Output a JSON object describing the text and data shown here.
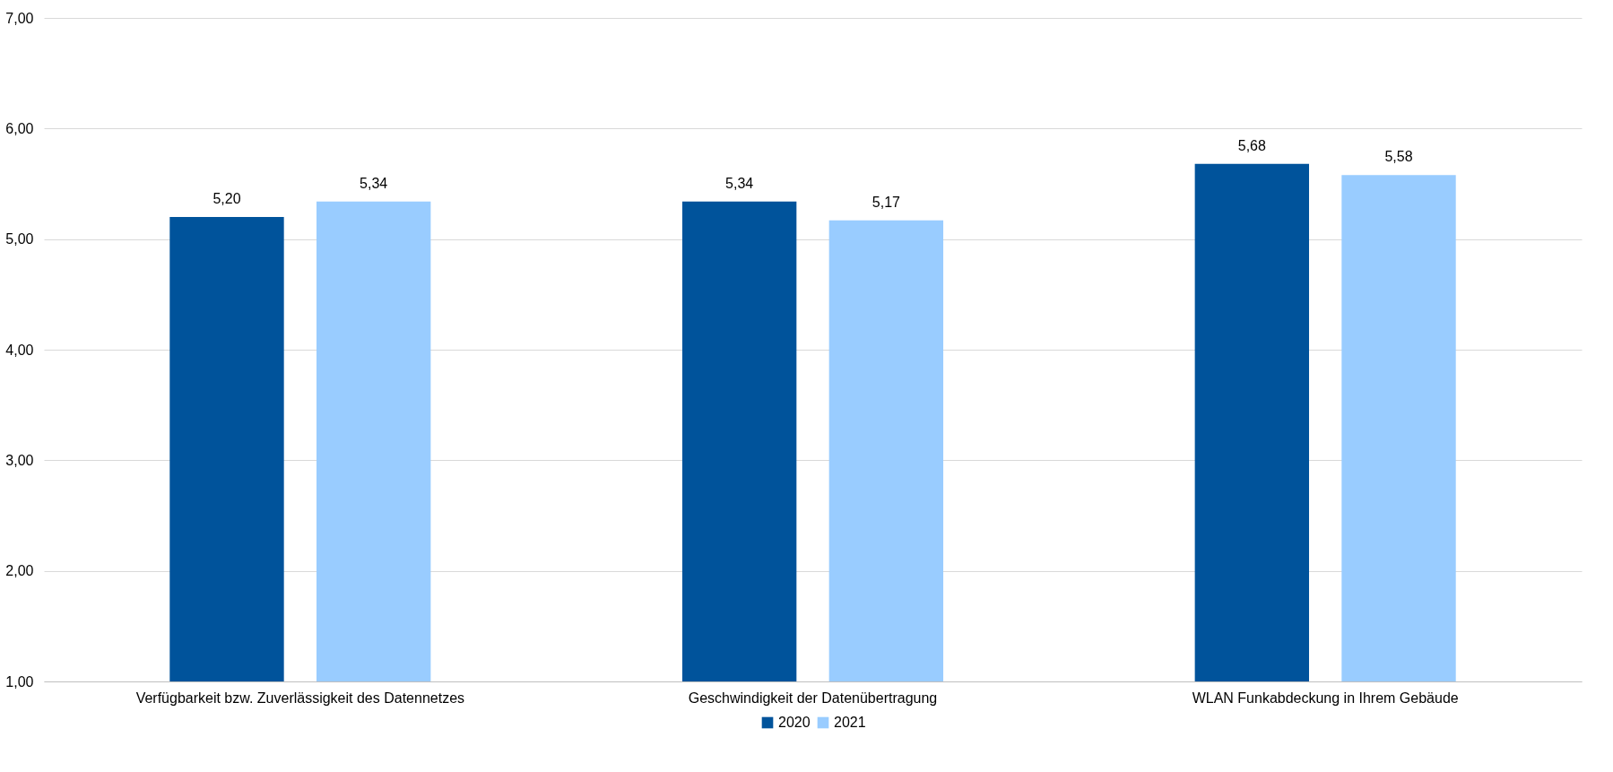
{
  "chart_data": {
    "type": "bar",
    "categories": [
      "Verfügbarkeit bzw. Zuverlässigkeit des Datennetzes",
      "Geschwindigkeit der Datenübertragung",
      "WLAN Funkabdeckung in Ihrem Gebäude"
    ],
    "series": [
      {
        "name": "2020",
        "color": "#00539b",
        "values": [
          5.2,
          5.34,
          5.68
        ],
        "value_labels": [
          "5,20",
          "5,34",
          "5,68"
        ]
      },
      {
        "name": "2021",
        "color": "#99ccff",
        "values": [
          5.34,
          5.17,
          5.58
        ],
        "value_labels": [
          "5,34",
          "5,17",
          "5,58"
        ]
      }
    ],
    "ylim": [
      1,
      7
    ],
    "yticks": [
      {
        "value": 1,
        "label": "1,00"
      },
      {
        "value": 2,
        "label": "2,00"
      },
      {
        "value": 3,
        "label": "3,00"
      },
      {
        "value": 4,
        "label": "4,00"
      },
      {
        "value": 5,
        "label": "5,00"
      },
      {
        "value": 6,
        "label": "6,00"
      },
      {
        "value": 7,
        "label": "7,00"
      }
    ],
    "grid": "y",
    "legend": "bottom"
  }
}
